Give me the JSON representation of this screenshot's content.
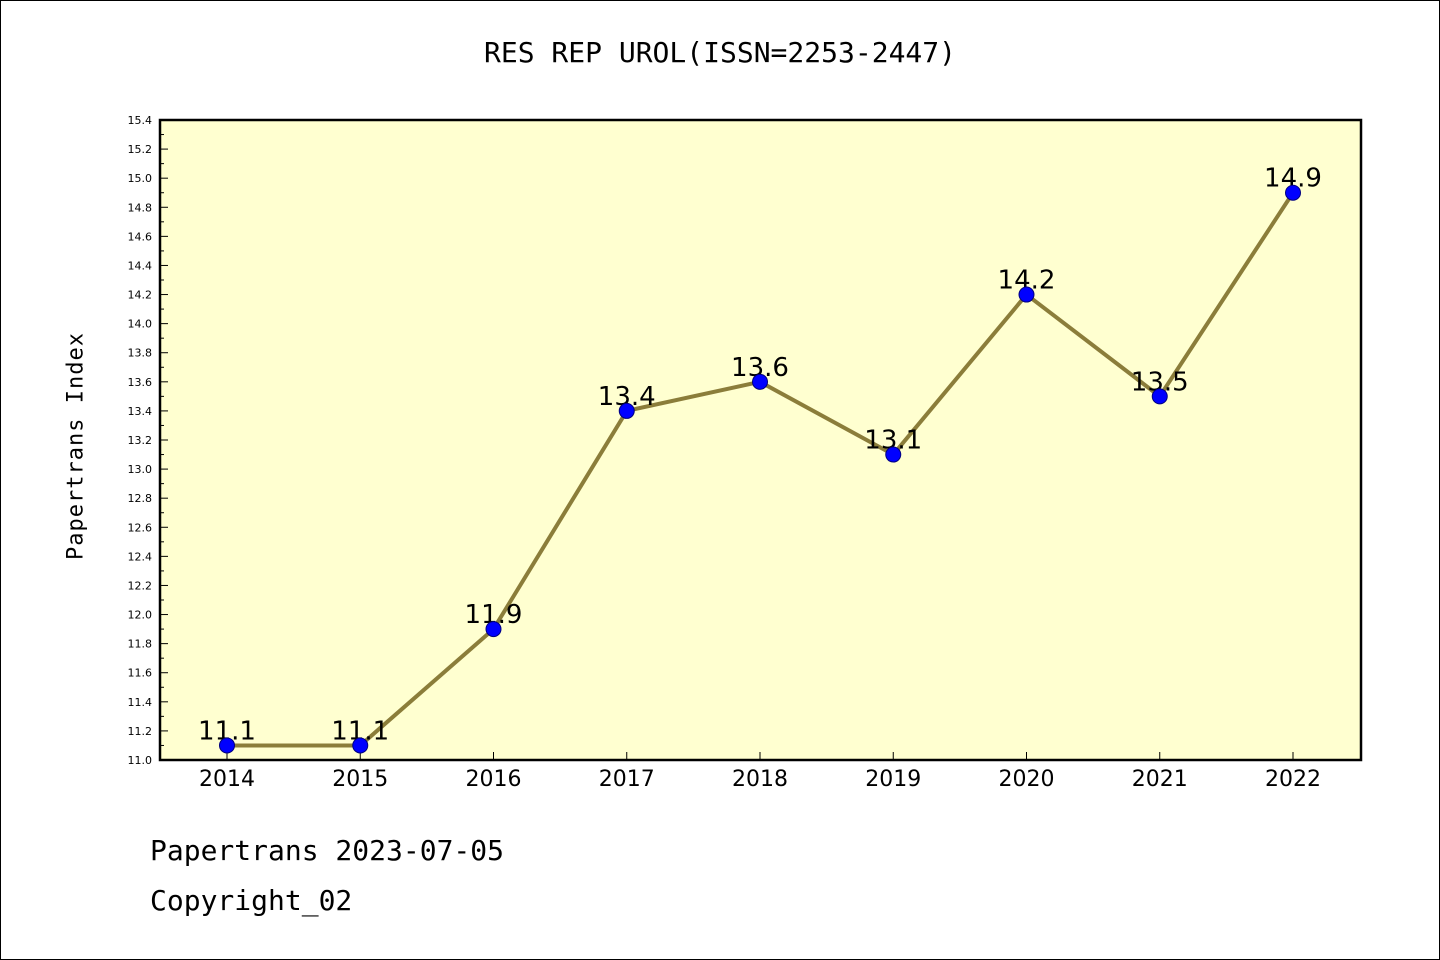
{
  "chart_data": {
    "type": "line",
    "title": "RES REP UROL(ISSN=2253-2447)",
    "xlabel": "",
    "ylabel": "Papertrans Index",
    "categories": [
      "2014",
      "2015",
      "2016",
      "2017",
      "2018",
      "2019",
      "2020",
      "2021",
      "2022"
    ],
    "series": [
      {
        "values": [
          11.1,
          11.1,
          11.9,
          13.4,
          13.6,
          13.1,
          14.2,
          13.5,
          14.9
        ],
        "data_labels": [
          "11.1",
          "11.1",
          "11.9",
          "13.4",
          "13.6",
          "13.1",
          "14.2",
          "13.5",
          "14.9"
        ]
      }
    ],
    "ylim": [
      11.0,
      15.4
    ],
    "y_ticks": [
      "11.0",
      "11.2",
      "11.4",
      "11.6",
      "11.8",
      "12.0",
      "12.2",
      "12.4",
      "12.6",
      "12.8",
      "13.0",
      "13.2",
      "13.4",
      "13.6",
      "13.8",
      "14.0",
      "14.2",
      "14.4",
      "14.6",
      "14.8",
      "15.0",
      "15.2",
      "15.4"
    ],
    "grid": false,
    "colors": {
      "plot_background": "#FFFFD0",
      "line": "#8B7D3A",
      "marker": "#0000FF",
      "marker_edge": "#000080"
    }
  },
  "footer": {
    "date_line": "Papertrans 2023-07-05",
    "copyright_line": "Copyright_02"
  }
}
